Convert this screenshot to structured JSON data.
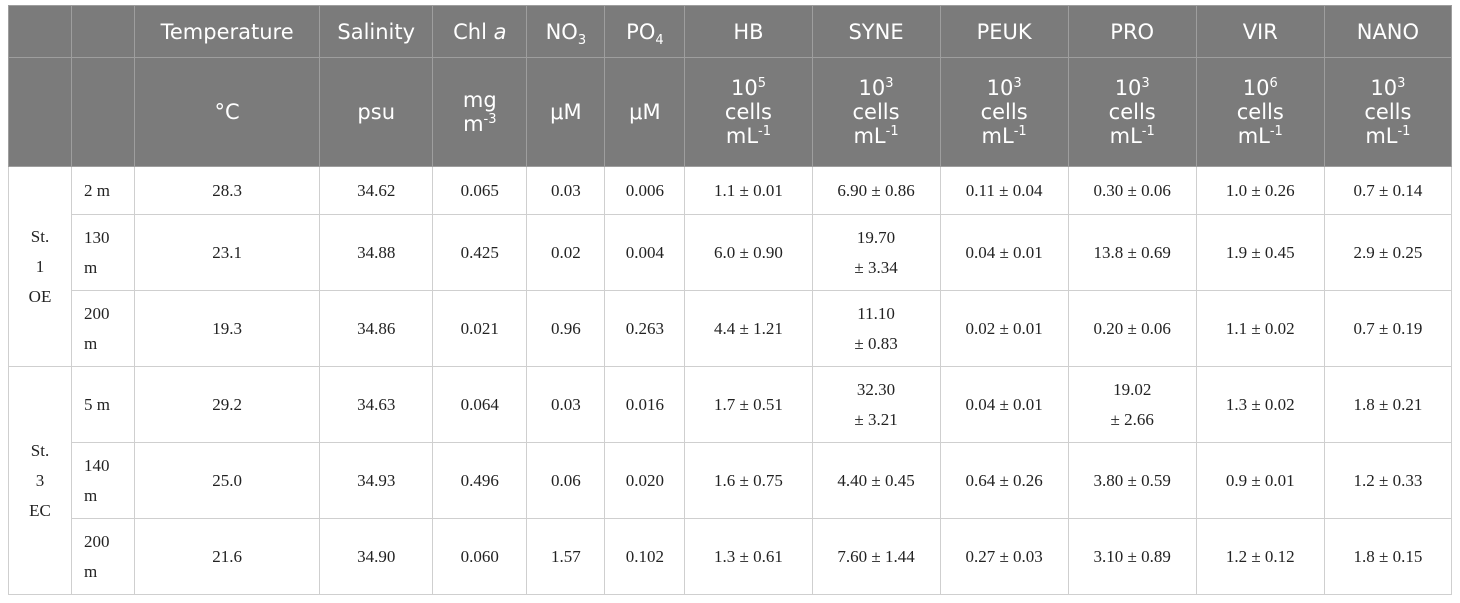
{
  "header": {
    "columns": [
      {
        "name": "Temperature",
        "unit": "°C"
      },
      {
        "name": "Salinity",
        "unit": "psu"
      },
      {
        "name_pre": "Chl ",
        "name_it": "a",
        "unit_l1": "mg",
        "unit_l2_base": "m",
        "unit_l2_sup": "-3"
      },
      {
        "name_base": "NO",
        "name_sub": "3",
        "unit": "μM"
      },
      {
        "name_base": "PO",
        "name_sub": "4",
        "unit": "μM"
      },
      {
        "name": "HB",
        "unit_base": "10",
        "unit_exp": "5",
        "unit_mid": "cells",
        "unit_l3_base": "mL",
        "unit_l3_sup": "-1"
      },
      {
        "name": "SYNE",
        "unit_base": "10",
        "unit_exp": "3",
        "unit_mid": "cells",
        "unit_l3_base": "mL",
        "unit_l3_sup": "-1"
      },
      {
        "name": "PEUK",
        "unit_base": "10",
        "unit_exp": "3",
        "unit_mid": "cells",
        "unit_l3_base": "mL",
        "unit_l3_sup": "-1"
      },
      {
        "name": "PRO",
        "unit_base": "10",
        "unit_exp": "3",
        "unit_mid": "cells",
        "unit_l3_base": "mL",
        "unit_l3_sup": "-1"
      },
      {
        "name": "VIR",
        "unit_base": "10",
        "unit_exp": "6",
        "unit_mid": "cells",
        "unit_l3_base": "mL",
        "unit_l3_sup": "-1"
      },
      {
        "name": "NANO",
        "unit_base": "10",
        "unit_exp": "3",
        "unit_mid": "cells",
        "unit_l3_base": "mL",
        "unit_l3_sup": "-1"
      }
    ]
  },
  "stations": [
    {
      "label_lines": [
        "St.",
        "1",
        "OE"
      ],
      "rows": [
        {
          "depth": [
            "2 m"
          ],
          "cells": [
            [
              "28.3"
            ],
            [
              "34.62"
            ],
            [
              "0.065"
            ],
            [
              "0.03"
            ],
            [
              "0.006"
            ],
            [
              "1.1 ± 0.01"
            ],
            [
              "6.90 ± 0.86"
            ],
            [
              "0.11 ± 0.04"
            ],
            [
              "0.30 ± 0.06"
            ],
            [
              "1.0 ± 0.26"
            ],
            [
              "0.7 ± 0.14"
            ]
          ]
        },
        {
          "depth": [
            "130",
            "m"
          ],
          "cells": [
            [
              "23.1"
            ],
            [
              "34.88"
            ],
            [
              "0.425"
            ],
            [
              "0.02"
            ],
            [
              "0.004"
            ],
            [
              "6.0 ± 0.90"
            ],
            [
              "19.70",
              "± 3.34"
            ],
            [
              "0.04 ± 0.01"
            ],
            [
              "13.8 ± 0.69"
            ],
            [
              "1.9 ± 0.45"
            ],
            [
              "2.9 ± 0.25"
            ]
          ]
        },
        {
          "depth": [
            "200",
            "m"
          ],
          "cells": [
            [
              "19.3"
            ],
            [
              "34.86"
            ],
            [
              "0.021"
            ],
            [
              "0.96"
            ],
            [
              "0.263"
            ],
            [
              "4.4 ± 1.21"
            ],
            [
              "11.10",
              "± 0.83"
            ],
            [
              "0.02 ± 0.01"
            ],
            [
              "0.20 ± 0.06"
            ],
            [
              "1.1 ± 0.02"
            ],
            [
              "0.7 ± 0.19"
            ]
          ]
        }
      ]
    },
    {
      "label_lines": [
        "St.",
        "3",
        "EC"
      ],
      "rows": [
        {
          "depth": [
            "5 m"
          ],
          "cells": [
            [
              "29.2"
            ],
            [
              "34.63"
            ],
            [
              "0.064"
            ],
            [
              "0.03"
            ],
            [
              "0.016"
            ],
            [
              "1.7 ± 0.51"
            ],
            [
              "32.30",
              "± 3.21"
            ],
            [
              "0.04 ± 0.01"
            ],
            [
              "19.02",
              "± 2.66"
            ],
            [
              "1.3 ± 0.02"
            ],
            [
              "1.8 ± 0.21"
            ]
          ]
        },
        {
          "depth": [
            "140",
            "m"
          ],
          "cells": [
            [
              "25.0"
            ],
            [
              "34.93"
            ],
            [
              "0.496"
            ],
            [
              "0.06"
            ],
            [
              "0.020"
            ],
            [
              "1.6 ± 0.75"
            ],
            [
              "4.40 ± 0.45"
            ],
            [
              "0.64 ± 0.26"
            ],
            [
              "3.80 ± 0.59"
            ],
            [
              "0.9 ± 0.01"
            ],
            [
              "1.2 ± 0.33"
            ]
          ]
        },
        {
          "depth": [
            "200",
            "m"
          ],
          "cells": [
            [
              "21.6"
            ],
            [
              "34.90"
            ],
            [
              "0.060"
            ],
            [
              "1.57"
            ],
            [
              "0.102"
            ],
            [
              "1.3 ± 0.61"
            ],
            [
              "7.60 ± 1.44"
            ],
            [
              "0.27 ± 0.03"
            ],
            [
              "3.10 ± 0.89"
            ],
            [
              "1.2 ± 0.12"
            ],
            [
              "1.8 ± 0.15"
            ]
          ]
        }
      ]
    }
  ]
}
